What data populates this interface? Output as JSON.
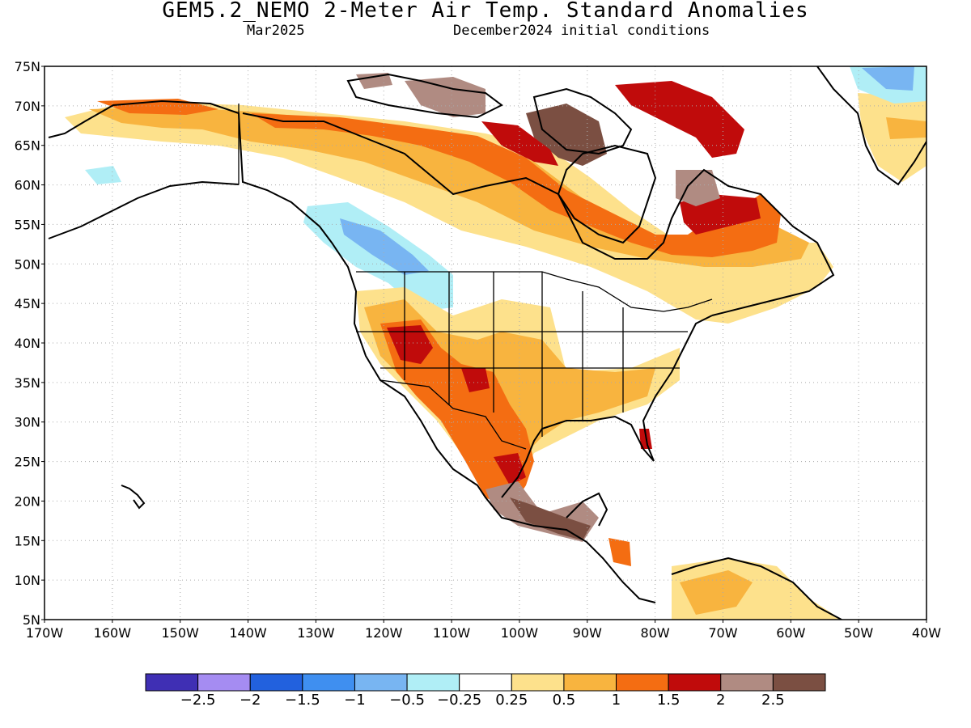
{
  "title": "GEM5.2_NEMO 2-Meter Air Temp. Standard Anomalies",
  "subtitle_left": "Mar2025",
  "subtitle_right": "December2024 initial conditions",
  "lat_labels": [
    "75N",
    "70N",
    "65N",
    "60N",
    "55N",
    "50N",
    "45N",
    "40N",
    "35N",
    "30N",
    "25N",
    "20N",
    "15N",
    "10N",
    "5N"
  ],
  "lon_labels": [
    "170W",
    "160W",
    "150W",
    "140W",
    "130W",
    "120W",
    "110W",
    "100W",
    "90W",
    "80W",
    "70W",
    "60W",
    "50W",
    "40W"
  ],
  "colorbar": {
    "colors": [
      "#3f2fb4",
      "#a58cf2",
      "#2261de",
      "#3f8ff0",
      "#78b5f2",
      "#b0eef6",
      "#ffffff",
      "#fde18c",
      "#f8b43f",
      "#f46d12",
      "#c00b0b",
      "#b08b82",
      "#7b4f42"
    ],
    "labels": [
      "−2.5",
      "−2",
      "−1.5",
      "−1",
      "−0.5",
      "−0.25",
      "0.25",
      "0.5",
      "1",
      "1.5",
      "2",
      "2.5"
    ]
  }
}
